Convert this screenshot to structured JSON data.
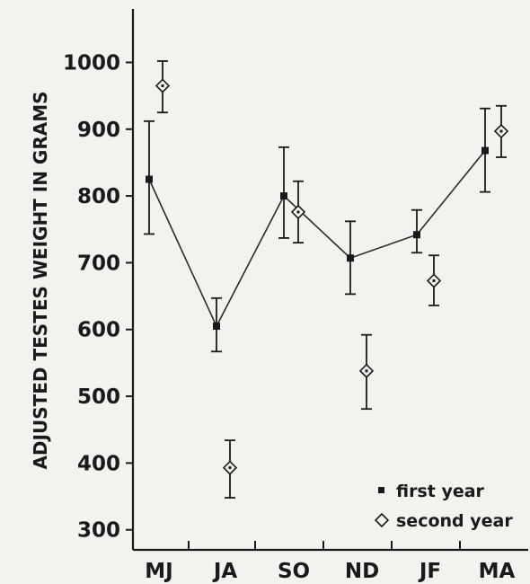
{
  "chart_data": {
    "type": "scatter",
    "ylabel": "ADJUSTED TESTES WEIGHT IN GRAMS",
    "xlabel": "",
    "categories": [
      "MJ",
      "JA",
      "SO",
      "ND",
      "JF",
      "MA"
    ],
    "ylim": [
      270,
      1080
    ],
    "yticks": [
      300,
      400,
      500,
      600,
      700,
      800,
      900,
      1000
    ],
    "ytick_labels": [
      "300",
      "400",
      "500",
      "600",
      "700",
      "800",
      "900",
      "1000"
    ],
    "grid": false,
    "legend_position": "bottom-right",
    "series": [
      {
        "name": "first year",
        "marker": "filled-square",
        "connected": true,
        "values": [
          825,
          605,
          800,
          707,
          742,
          868
        ],
        "lower": [
          743,
          567,
          737,
          653,
          715,
          806
        ],
        "upper": [
          912,
          647,
          873,
          762,
          779,
          931
        ]
      },
      {
        "name": "second year",
        "marker": "open-diamond",
        "connected": false,
        "values": [
          965,
          393,
          776,
          538,
          673,
          897
        ],
        "lower": [
          925,
          348,
          730,
          481,
          636,
          858
        ],
        "upper": [
          1002,
          434,
          822,
          592,
          711,
          935
        ]
      }
    ]
  },
  "colors": {
    "ink": "#1a1a1a",
    "background": "#f3f2ee"
  },
  "legend": {
    "first_icon": "filled-square-marker",
    "second_icon": "open-diamond-marker"
  }
}
